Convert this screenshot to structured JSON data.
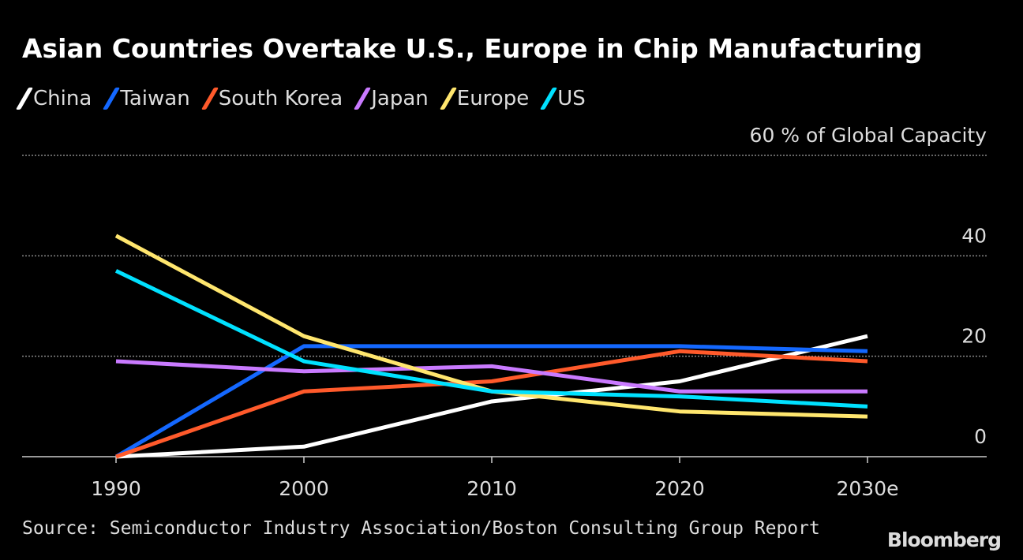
{
  "chart_data": {
    "type": "line",
    "title": "Asian Countries Overtake U.S., Europe in Chip Manufacturing",
    "ylabel": "% of Global Capacity",
    "x": [
      "1990",
      "2000",
      "2010",
      "2020",
      "2030e"
    ],
    "ylim": [
      0,
      60
    ],
    "yticks": [
      0,
      20,
      40,
      60
    ],
    "grid": true,
    "legend": "top-left",
    "series": [
      {
        "name": "China",
        "color": "#ffffff",
        "values": [
          0,
          2,
          11,
          15,
          24
        ]
      },
      {
        "name": "Taiwan",
        "color": "#1468ff",
        "values": [
          0,
          22,
          22,
          22,
          21
        ]
      },
      {
        "name": "South Korea",
        "color": "#ff5a2b",
        "values": [
          0,
          13,
          15,
          21,
          19
        ]
      },
      {
        "name": "Japan",
        "color": "#c97aff",
        "values": [
          19,
          17,
          18,
          13,
          13
        ]
      },
      {
        "name": "Europe",
        "color": "#ffe66e",
        "values": [
          44,
          24,
          13,
          9,
          8
        ]
      },
      {
        "name": "US",
        "color": "#00e1ff",
        "values": [
          37,
          19,
          13,
          12,
          10
        ]
      }
    ],
    "source": "Source: Semiconductor Industry Association/Boston Consulting Group Report",
    "logo": "Bloomberg"
  }
}
